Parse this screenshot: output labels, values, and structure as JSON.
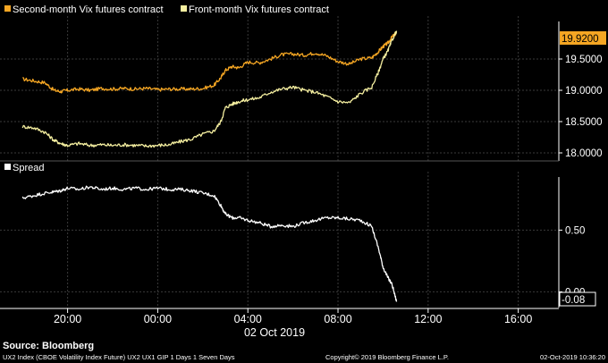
{
  "chart_data": [
    {
      "type": "line",
      "panel": "top",
      "legend": [
        {
          "name": "Second-month Vix futures contract",
          "color": "#f5a623"
        },
        {
          "name": "Front-month Vix futures contract",
          "color": "#f5efa0"
        }
      ],
      "legend_placement": "top-left",
      "ylim": [
        17.9,
        20.1
      ],
      "yticks": [
        {
          "value": 18.0,
          "label": "18.0000"
        },
        {
          "value": 18.5,
          "label": "18.5000"
        },
        {
          "value": 19.0,
          "label": "19.0000"
        },
        {
          "value": 19.5,
          "label": "19.5000"
        }
      ],
      "last_value": {
        "value": 19.92,
        "label": "19.9200",
        "color": "#f5a623"
      },
      "grid": true,
      "series": [
        {
          "name": "Second-month Vix futures contract",
          "color": "#f5a623",
          "x": [
            -6.0,
            -5.5,
            -5.0,
            -4.6,
            -4.3,
            -4.0,
            -3.5,
            -3.0,
            -2.5,
            -2.0,
            -1.5,
            -1.0,
            -0.5,
            0.0,
            0.5,
            1.0,
            1.5,
            2.0,
            2.5,
            2.8,
            3.0,
            3.3,
            3.6,
            4.0,
            4.5,
            5.0,
            5.5,
            6.0,
            6.5,
            7.0,
            7.5,
            8.0,
            8.5,
            9.0,
            9.5,
            9.8,
            10.0,
            10.2,
            10.4,
            10.6
          ],
          "y": [
            19.18,
            19.15,
            19.12,
            19.0,
            18.98,
            19.0,
            19.02,
            19.0,
            19.03,
            19.02,
            19.03,
            19.02,
            19.03,
            19.01,
            19.02,
            19.02,
            19.02,
            19.03,
            19.08,
            19.2,
            19.32,
            19.38,
            19.36,
            19.45,
            19.44,
            19.5,
            19.57,
            19.58,
            19.56,
            19.6,
            19.55,
            19.46,
            19.42,
            19.5,
            19.52,
            19.62,
            19.7,
            19.75,
            19.85,
            19.92
          ]
        },
        {
          "name": "Front-month Vix futures contract",
          "color": "#f5efa0",
          "x": [
            -6.0,
            -5.5,
            -5.0,
            -4.6,
            -4.3,
            -4.0,
            -3.5,
            -3.0,
            -2.5,
            -2.0,
            -1.5,
            -1.0,
            -0.5,
            0.0,
            0.5,
            1.0,
            1.5,
            2.0,
            2.5,
            2.8,
            3.0,
            3.3,
            3.6,
            4.0,
            4.5,
            5.0,
            5.5,
            6.0,
            6.5,
            7.0,
            7.5,
            8.0,
            8.5,
            9.0,
            9.5,
            9.8,
            10.0,
            10.2,
            10.4,
            10.6
          ],
          "y": [
            18.42,
            18.4,
            18.33,
            18.2,
            18.15,
            18.12,
            18.15,
            18.12,
            18.13,
            18.12,
            18.13,
            18.12,
            18.11,
            18.12,
            18.13,
            18.18,
            18.22,
            18.3,
            18.35,
            18.5,
            18.72,
            18.78,
            18.82,
            18.85,
            18.88,
            18.97,
            19.02,
            19.05,
            19.0,
            18.97,
            18.9,
            18.82,
            18.8,
            18.95,
            19.05,
            19.3,
            19.5,
            19.62,
            19.8,
            19.95
          ]
        }
      ]
    },
    {
      "type": "line",
      "panel": "bottom",
      "legend": [
        {
          "name": "Spread",
          "color": "#ffffff"
        }
      ],
      "legend_placement": "top-left",
      "ylim": [
        -0.12,
        0.93
      ],
      "yticks": [
        {
          "value": 0.5,
          "label": "0.50"
        },
        {
          "value": 0.0,
          "label": "0.00"
        }
      ],
      "last_value": {
        "value": -0.08,
        "label": "-0.08",
        "color": "#ffffff"
      },
      "grid": true,
      "series": [
        {
          "name": "Spread",
          "color": "#ffffff",
          "x": [
            -6.0,
            -5.5,
            -5.0,
            -4.6,
            -4.3,
            -4.0,
            -3.5,
            -3.0,
            -2.5,
            -2.0,
            -1.5,
            -1.0,
            -0.5,
            0.0,
            0.5,
            1.0,
            1.5,
            2.0,
            2.5,
            2.8,
            3.0,
            3.3,
            3.6,
            4.0,
            4.5,
            5.0,
            5.5,
            6.0,
            6.5,
            7.0,
            7.5,
            8.0,
            8.5,
            9.0,
            9.5,
            9.8,
            10.0,
            10.2,
            10.4,
            10.6
          ],
          "y": [
            0.76,
            0.78,
            0.8,
            0.81,
            0.82,
            0.84,
            0.83,
            0.85,
            0.83,
            0.84,
            0.83,
            0.84,
            0.83,
            0.84,
            0.83,
            0.83,
            0.82,
            0.8,
            0.78,
            0.7,
            0.63,
            0.6,
            0.6,
            0.58,
            0.56,
            0.53,
            0.54,
            0.53,
            0.56,
            0.58,
            0.6,
            0.6,
            0.59,
            0.58,
            0.53,
            0.35,
            0.2,
            0.12,
            0.06,
            -0.08
          ]
        }
      ]
    }
  ],
  "x_axis": {
    "range": [
      -7.0,
      17.8
    ],
    "ticks": [
      {
        "value": -4,
        "label": "20:00"
      },
      {
        "value": 0,
        "label": "00:00"
      },
      {
        "value": 4,
        "label": "04:00"
      },
      {
        "value": 8,
        "label": "08:00"
      },
      {
        "value": 12,
        "label": "12:00"
      },
      {
        "value": 16,
        "label": "16:00"
      }
    ],
    "date_label": "02 Oct 2019"
  },
  "footer": {
    "source": "Source: Bloomberg",
    "description": "UX2 Index (CBOE Volatility Index Future) UX2 UX1 GIP 1 Days 1 Seven Days",
    "copyright": "Copyright© 2019 Bloomberg Finance L.P.",
    "timestamp": "02-Oct-2019 10:36:20"
  }
}
